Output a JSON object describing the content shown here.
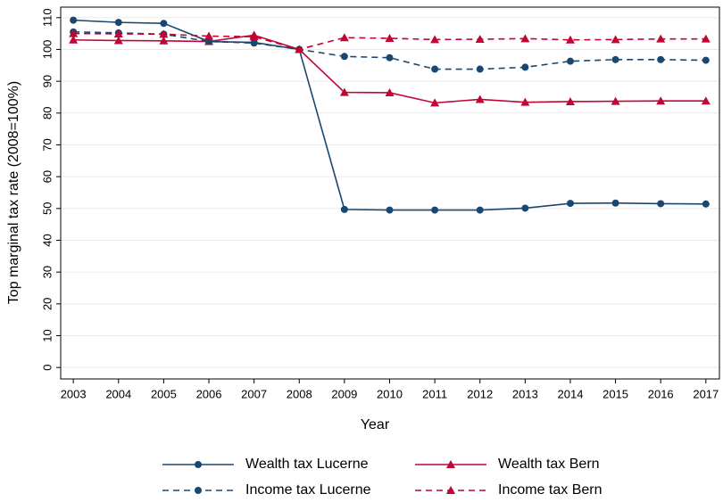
{
  "chart_data": {
    "type": "line",
    "x_label": "Year",
    "y_label": "Top marginal tax rate (2008=100%)",
    "x": [
      2003,
      2004,
      2005,
      2006,
      2007,
      2008,
      2009,
      2010,
      2011,
      2012,
      2013,
      2014,
      2015,
      2016,
      2017
    ],
    "series": [
      {
        "name": "Wealth tax Lucerne",
        "color": "#1a476f",
        "dash": false,
        "marker": "circle",
        "values": [
          109.2,
          108.5,
          108.2,
          102.5,
          102.2,
          100,
          49.7,
          49.5,
          49.5,
          49.5,
          50.1,
          51.6,
          51.7,
          51.5,
          51.4
        ]
      },
      {
        "name": "Wealth tax Bern",
        "color": "#c10534",
        "dash": false,
        "marker": "triangle",
        "values": [
          103,
          102.8,
          102.7,
          102.5,
          104.5,
          100,
          86.5,
          86.4,
          83.2,
          84.3,
          83.4,
          83.6,
          83.7,
          83.8,
          83.8
        ]
      },
      {
        "name": "Income tax Lucerne",
        "color": "#1a476f",
        "dash": true,
        "marker": "circle",
        "values": [
          105.5,
          105.2,
          104.8,
          102.5,
          102,
          100,
          97.8,
          97.4,
          93.8,
          93.8,
          94.4,
          96.3,
          96.8,
          96.8,
          96.6
        ]
      },
      {
        "name": "Income tax Bern",
        "color": "#c10534",
        "dash": true,
        "marker": "triangle",
        "values": [
          105,
          104.9,
          104.8,
          104.2,
          104,
          100,
          103.7,
          103.5,
          103.1,
          103.2,
          103.4,
          103,
          103.1,
          103.3,
          103.3
        ]
      }
    ],
    "xlim": [
      2002.72,
      2017.3
    ],
    "xticks": [
      2003,
      2004,
      2005,
      2006,
      2007,
      2008,
      2009,
      2010,
      2011,
      2012,
      2013,
      2014,
      2015,
      2016,
      2017
    ],
    "ylim": [
      -3.6,
      113.3
    ],
    "yticks": [
      0,
      10,
      20,
      30,
      40,
      50,
      60,
      70,
      80,
      90,
      100,
      110
    ],
    "grid": true,
    "legend": "bottom"
  }
}
